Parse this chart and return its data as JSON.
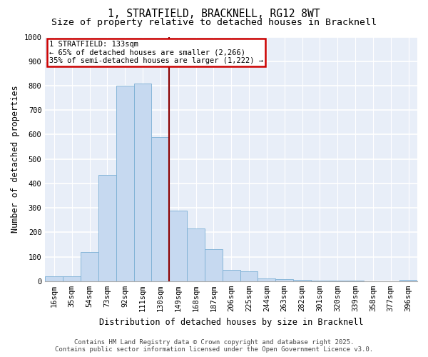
{
  "title": "1, STRATFIELD, BRACKNELL, RG12 8WT",
  "subtitle": "Size of property relative to detached houses in Bracknell",
  "xlabel": "Distribution of detached houses by size in Bracknell",
  "ylabel": "Number of detached properties",
  "bar_color": "#c6d9f0",
  "bar_edge_color": "#7bafd4",
  "background_color": "#e8eef8",
  "categories": [
    "16sqm",
    "35sqm",
    "54sqm",
    "73sqm",
    "92sqm",
    "111sqm",
    "130sqm",
    "149sqm",
    "168sqm",
    "187sqm",
    "206sqm",
    "225sqm",
    "244sqm",
    "263sqm",
    "282sqm",
    "301sqm",
    "320sqm",
    "339sqm",
    "358sqm",
    "377sqm",
    "396sqm"
  ],
  "values": [
    20,
    20,
    120,
    435,
    800,
    810,
    590,
    290,
    215,
    130,
    45,
    40,
    10,
    8,
    5,
    3,
    2,
    1,
    0,
    0,
    5
  ],
  "ylim": [
    0,
    1000
  ],
  "yticks": [
    0,
    100,
    200,
    300,
    400,
    500,
    600,
    700,
    800,
    900,
    1000
  ],
  "property_label": "1 STRATFIELD: 133sqm",
  "annotation_line1": "← 65% of detached houses are smaller (2,266)",
  "annotation_line2": "35% of semi-detached houses are larger (1,222) →",
  "red_line_bin_index": 6,
  "footer_line1": "Contains HM Land Registry data © Crown copyright and database right 2025.",
  "footer_line2": "Contains public sector information licensed under the Open Government Licence v3.0.",
  "title_fontsize": 10.5,
  "subtitle_fontsize": 9.5,
  "axis_label_fontsize": 8.5,
  "tick_fontsize": 7.5,
  "annotation_fontsize": 7.5,
  "footer_fontsize": 6.5
}
